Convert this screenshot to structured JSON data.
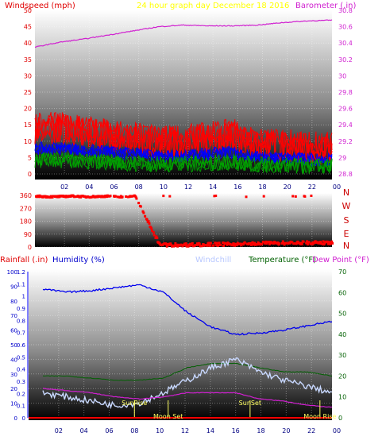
{
  "header": {
    "wind_label": "Windspeed (mph)",
    "graph_title": "24 hour graph day  December 18 2016",
    "baro_label": "Barometer (.in)"
  },
  "panel3_header": {
    "rain_label": "Rainfall (.in)",
    "humidity_label": "Humidity (%)",
    "windchill_label": "Windchill",
    "temp_label": "Temperature (°F)",
    "dew_label": "Dew Point (°F)"
  },
  "x_ticks": [
    "02",
    "04",
    "06",
    "08",
    "10",
    "12",
    "14",
    "16",
    "18",
    "20",
    "22",
    "00"
  ],
  "wind_ticks": [
    "0",
    "5",
    "10",
    "15",
    "20",
    "25",
    "30",
    "35",
    "40",
    "45",
    "50"
  ],
  "baro_ticks": [
    "28.8",
    "29",
    "29.2",
    "29.4",
    "29.6",
    "29.8",
    "30",
    "30.2",
    "30.4",
    "30.6",
    "30.8"
  ],
  "dir_ticks": [
    "0",
    "90",
    "180",
    "270",
    "360"
  ],
  "compass": [
    "N",
    "W",
    "S",
    "E",
    "N"
  ],
  "rain_ticks": [
    "0",
    "0.1",
    "0.2",
    "0.3",
    "0.4",
    "0.5",
    "0.6",
    "0.7",
    "0.8",
    "0.9",
    "1",
    "1.1",
    "1.2"
  ],
  "hum_ticks": [
    "0",
    "10",
    "20",
    "30",
    "40",
    "50",
    "60",
    "70",
    "80",
    "90",
    "100"
  ],
  "temp_ticks": [
    "0",
    "10",
    "20",
    "30",
    "40",
    "50",
    "60",
    "70"
  ],
  "events": [
    "SunRise",
    "SunSet",
    "Moon Set",
    "Moon Rise"
  ],
  "colors": {
    "baro": "#d020d0",
    "gust": "#ff0000",
    "avg_wind": "#0000ff",
    "wind_low": "#00a000",
    "direction": "#ff0000",
    "humidity": "#0000ee",
    "windchill": "#c8d8ff",
    "temperature": "#006000",
    "dewpoint": "#d020d0",
    "title": "#ffff00",
    "event": "#ffff60"
  },
  "chart_data": [
    {
      "type": "line",
      "title": "24 hour graph day  December 18 2016",
      "xlabel": "",
      "x": [
        0,
        2,
        4,
        6,
        8,
        10,
        12,
        14,
        16,
        18,
        20,
        22,
        24
      ],
      "ylim": [
        0,
        50
      ],
      "y2lim": [
        28.8,
        30.8
      ],
      "series": [
        {
          "name": "Barometer (.in)",
          "axis": "right",
          "values": [
            30.35,
            30.41,
            30.45,
            30.5,
            30.55,
            30.6,
            30.62,
            30.61,
            30.61,
            30.62,
            30.65,
            30.67,
            30.68
          ]
        },
        {
          "name": "Windspeed (mph)",
          "axis": "left",
          "values": [
            14,
            14,
            13,
            12,
            11,
            10,
            10,
            11,
            12,
            9,
            9,
            8,
            8
          ]
        }
      ]
    },
    {
      "type": "scatter",
      "title": "",
      "x": [
        0,
        1,
        2,
        3,
        4,
        5,
        6,
        7,
        8,
        10,
        12,
        14,
        16,
        18,
        20,
        22,
        24
      ],
      "ylim": [
        0,
        360
      ],
      "series": [
        {
          "name": "Wind direction",
          "values": [
            355,
            350,
            352,
            355,
            350,
            352,
            355,
            350,
            355,
            15,
            15,
            18,
            20,
            25,
            28,
            30,
            28
          ]
        }
      ]
    },
    {
      "type": "line",
      "title": "",
      "x": [
        0,
        2,
        4,
        6,
        8,
        10,
        12,
        14,
        16,
        18,
        20,
        22,
        24
      ],
      "ylim": [
        0,
        100
      ],
      "y2lim": [
        0,
        70
      ],
      "series": [
        {
          "name": "Humidity (%)",
          "axis": "left",
          "values": [
            88,
            86,
            87,
            89,
            91,
            86,
            72,
            62,
            57,
            58,
            60,
            63,
            66
          ]
        },
        {
          "name": "Windchill",
          "axis": "right",
          "values": [
            12,
            10,
            8,
            6,
            7,
            12,
            18,
            24,
            28,
            22,
            18,
            15,
            12
          ]
        },
        {
          "name": "Temperature (°F)",
          "axis": "right",
          "values": [
            20,
            20,
            19,
            18,
            18,
            19,
            24,
            26,
            26,
            24,
            22,
            22,
            20
          ]
        },
        {
          "name": "Dew Point (°F)",
          "axis": "right",
          "values": [
            14,
            13,
            12,
            10,
            9,
            10,
            12,
            12,
            12,
            9,
            8,
            6,
            5
          ]
        },
        {
          "name": "Rainfall (.in)",
          "axis": "left",
          "values": [
            0,
            0,
            0,
            0,
            0,
            0,
            0,
            0,
            0,
            0,
            0,
            0,
            0
          ]
        }
      ]
    }
  ]
}
